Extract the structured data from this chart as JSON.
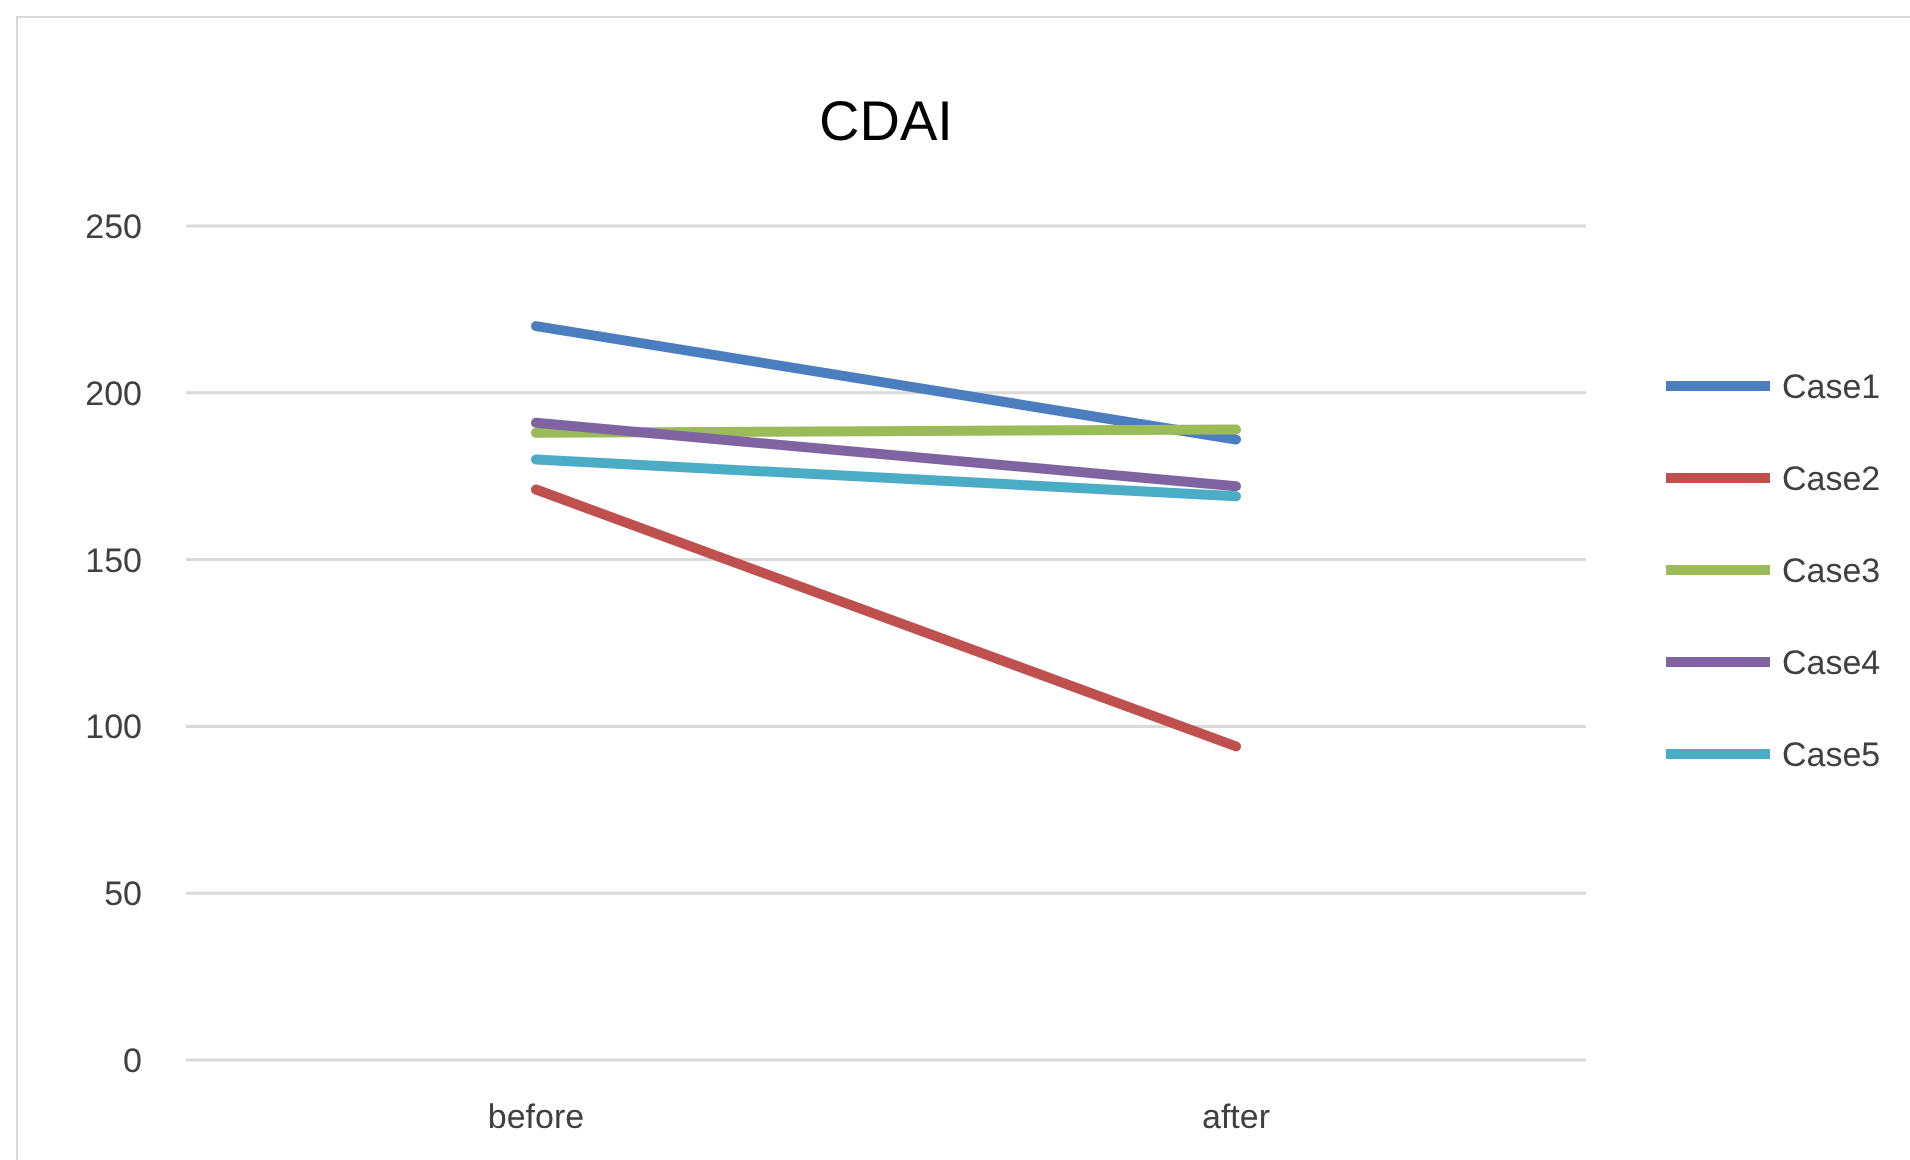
{
  "chart_data": {
    "type": "line",
    "title": "CDAI",
    "categories": [
      "before",
      "after"
    ],
    "series": [
      {
        "name": "Case1",
        "color": "#4a7ebf",
        "values": [
          220,
          186
        ]
      },
      {
        "name": "Case2",
        "color": "#c0504d",
        "values": [
          171,
          94
        ]
      },
      {
        "name": "Case3",
        "color": "#9bbb59",
        "values": [
          188,
          189
        ]
      },
      {
        "name": "Case4",
        "color": "#8064a2",
        "values": [
          191,
          172
        ]
      },
      {
        "name": "Case5",
        "color": "#4bacc6",
        "values": [
          180,
          169
        ]
      }
    ],
    "ylim": [
      0,
      250
    ],
    "yticks": [
      0,
      50,
      100,
      150,
      200,
      250
    ],
    "grid": "y",
    "legend": "right",
    "marker": "none",
    "line_style": "solid"
  }
}
